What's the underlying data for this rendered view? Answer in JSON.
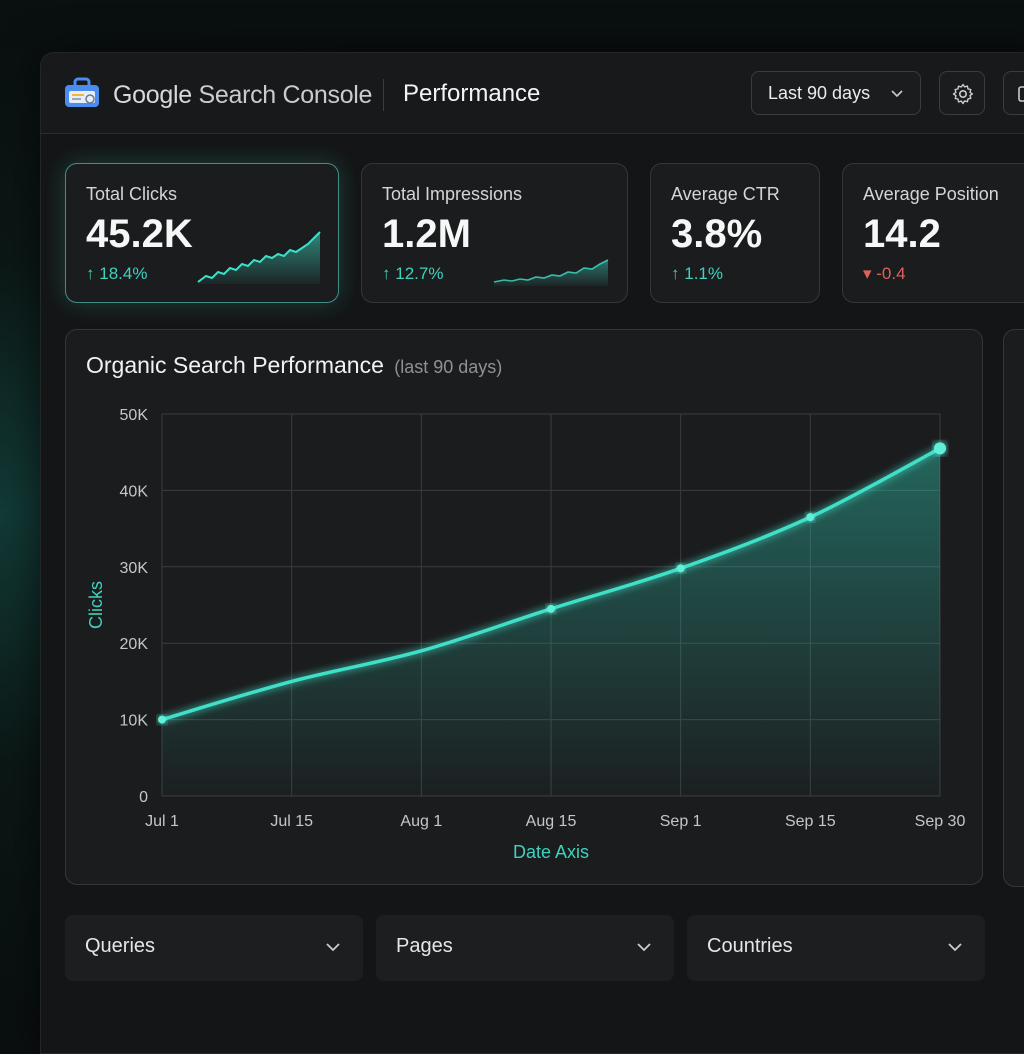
{
  "header": {
    "brand_google": "Google",
    "brand_product": "Search Console",
    "page_title": "Performance",
    "date_range": "Last 90 days"
  },
  "metrics": [
    {
      "label": "Total Clicks",
      "value": "45.2K",
      "delta": "18.4%",
      "direction": "up",
      "active": true
    },
    {
      "label": "Total Impressions",
      "value": "1.2M",
      "delta": "12.7%",
      "direction": "up",
      "active": false
    },
    {
      "label": "Average CTR",
      "value": "3.8%",
      "delta": "1.1%",
      "direction": "up",
      "active": false
    },
    {
      "label": "Average Position",
      "value": "14.2",
      "delta": "-0.4",
      "direction": "down",
      "active": false
    }
  ],
  "chart_panel": {
    "title": "Organic Search Performance",
    "subtitle": "(last 90 days)"
  },
  "chart_data": {
    "type": "area",
    "xlabel": "Date Axis",
    "ylabel": "Clicks",
    "x_ticks": [
      "Jul 1",
      "Jul 15",
      "Aug 1",
      "Aug 15",
      "Sep 1",
      "Sep 15",
      "Sep 30"
    ],
    "y_ticks": [
      "0",
      "10K",
      "20K",
      "30K",
      "40K",
      "50K"
    ],
    "ylim": [
      0,
      50000
    ],
    "grid": true,
    "series": [
      {
        "values": [
          10000,
          15000,
          19000,
          24500,
          29800,
          36500,
          45500
        ],
        "highlighted_points": [
          10000,
          24500,
          29800,
          36500,
          45500
        ]
      }
    ]
  },
  "dropdowns": [
    {
      "label": "Queries"
    },
    {
      "label": "Pages"
    },
    {
      "label": "Countries"
    }
  ],
  "colors": {
    "accent": "#3fe0c8",
    "down": "#e0605a",
    "background": "#141516"
  }
}
